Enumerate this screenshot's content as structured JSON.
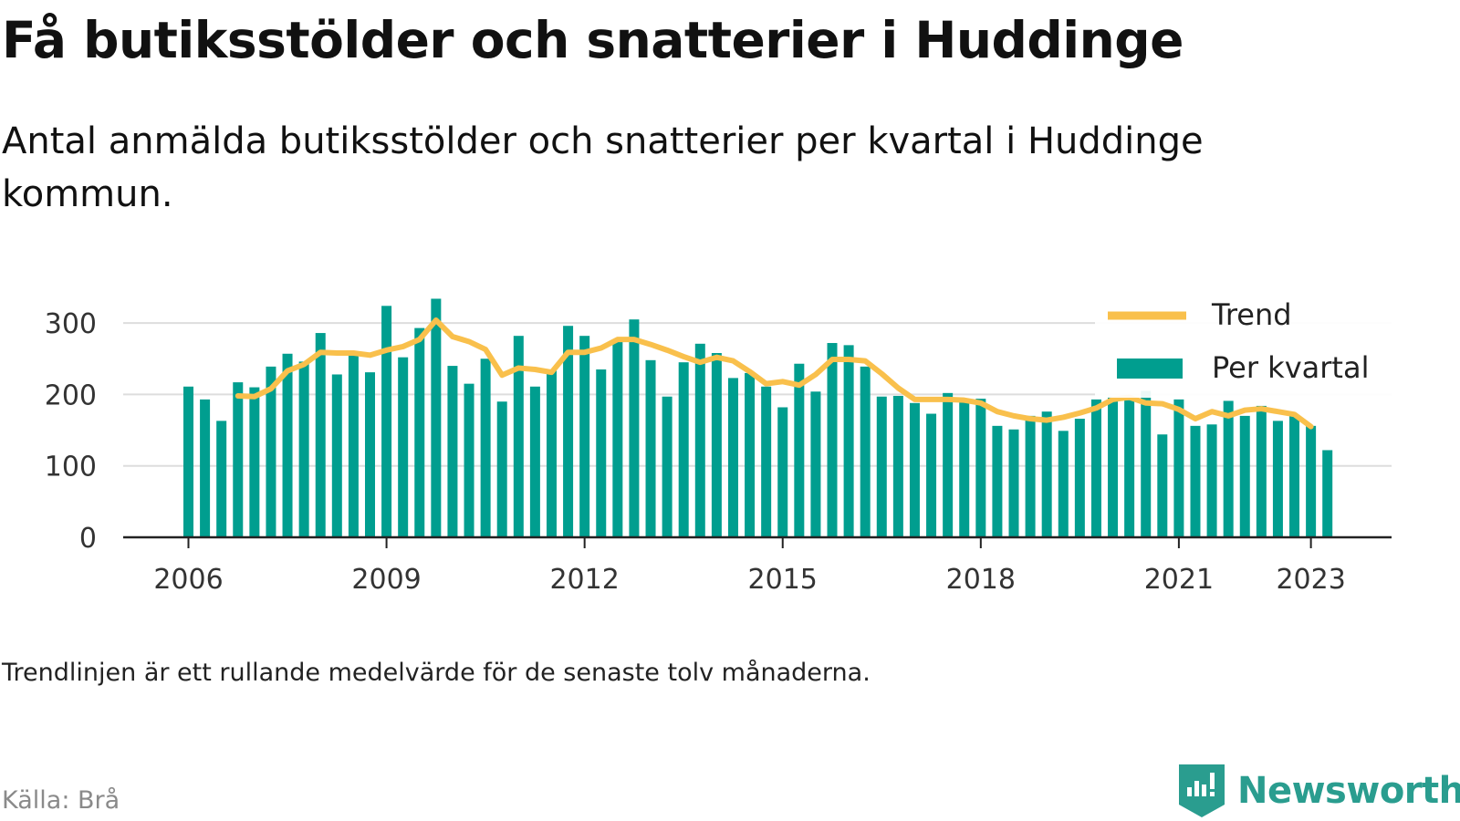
{
  "header": {
    "title": "Få butiksstölder och snatterier i Huddinge",
    "subtitle": "Antal anmälda butiksstölder och snatterier per kvartal i Huddinge kommun."
  },
  "footer": {
    "note": "Trendlinjen är ett rullande medelvärde för de senaste tolv månaderna.",
    "source": "Källa: Brå",
    "brand": "Newsworthy"
  },
  "colors": {
    "bar": "#009e8f",
    "trend": "#f9c04c",
    "axis": "#222222",
    "grid": "#dddddd",
    "brand": "#2a9d8f"
  },
  "chart_data": {
    "type": "bar",
    "start": "2006 Q1",
    "ylim": [
      0,
      340
    ],
    "yticks": [
      0,
      100,
      200,
      300
    ],
    "xticks": [
      "2006",
      "2009",
      "2012",
      "2015",
      "2018",
      "2021",
      "2023"
    ],
    "grid": true,
    "legend_position": "top-right",
    "series": [
      {
        "name": "Per kvartal",
        "type": "bar",
        "values": [
          211,
          193,
          163,
          217,
          210,
          239,
          257,
          246,
          286,
          228,
          258,
          231,
          324,
          252,
          293,
          334,
          240,
          215,
          250,
          190,
          282,
          211,
          235,
          296,
          282,
          235,
          276,
          305,
          248,
          197,
          245,
          271,
          258,
          223,
          230,
          211,
          182,
          243,
          204,
          272,
          269,
          239,
          197,
          198,
          188,
          173,
          202,
          194,
          194,
          156,
          151,
          170,
          176,
          149,
          166,
          193,
          197,
          192,
          205,
          144,
          193,
          156,
          158,
          191,
          170,
          184,
          163,
          170,
          156,
          122
        ]
      },
      {
        "name": "Trend",
        "type": "line",
        "start_index": 3,
        "values": [
          198,
          197,
          208,
          233,
          242,
          259,
          258,
          258,
          255,
          262,
          267,
          277,
          304,
          281,
          274,
          263,
          227,
          237,
          235,
          231,
          259,
          259,
          265,
          277,
          277,
          270,
          262,
          253,
          245,
          252,
          247,
          232,
          215,
          218,
          213,
          228,
          249,
          249,
          247,
          229,
          209,
          193,
          193,
          193,
          192,
          188,
          176,
          170,
          166,
          164,
          168,
          174,
          181,
          193,
          196,
          188,
          187,
          179,
          166,
          176,
          170,
          178,
          180,
          176,
          172,
          155
        ]
      }
    ]
  }
}
